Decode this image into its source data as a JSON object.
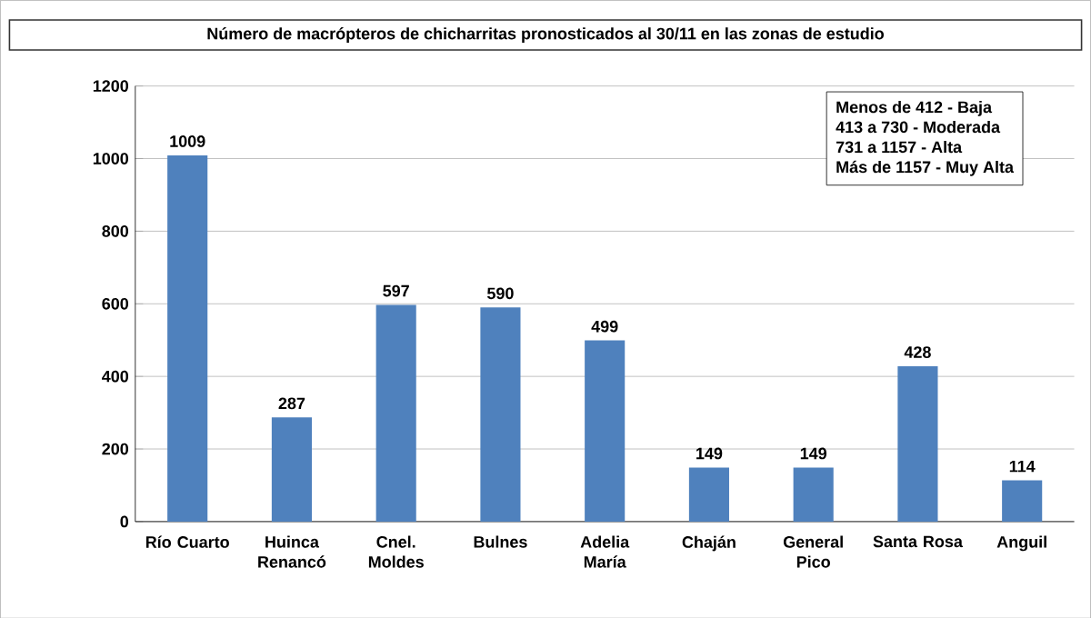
{
  "chart_data": {
    "type": "bar",
    "title": "Número de macrópteros de chicharritas pronosticados al 30/11 en las zonas de estudio",
    "categories": [
      "Río Cuarto",
      "Huinca Renancó",
      "Cnel. Moldes",
      "Bulnes",
      "Adelia María",
      "Chaján",
      "General Pico",
      "Santa Rosa",
      "Anguil"
    ],
    "values": [
      1009,
      287,
      597,
      590,
      499,
      149,
      149,
      428,
      114
    ],
    "color": "#4f81bd",
    "ylim": [
      0,
      1200
    ],
    "yticks": [
      0,
      200,
      400,
      600,
      800,
      1000,
      1200
    ],
    "grid": "y",
    "data_labels": true,
    "annotations": [
      "Menos de 412  - Baja",
      "413 a 730  - Moderada",
      "731 a 1157  - Alta",
      "Más de 1157  - Muy Alta"
    ]
  }
}
